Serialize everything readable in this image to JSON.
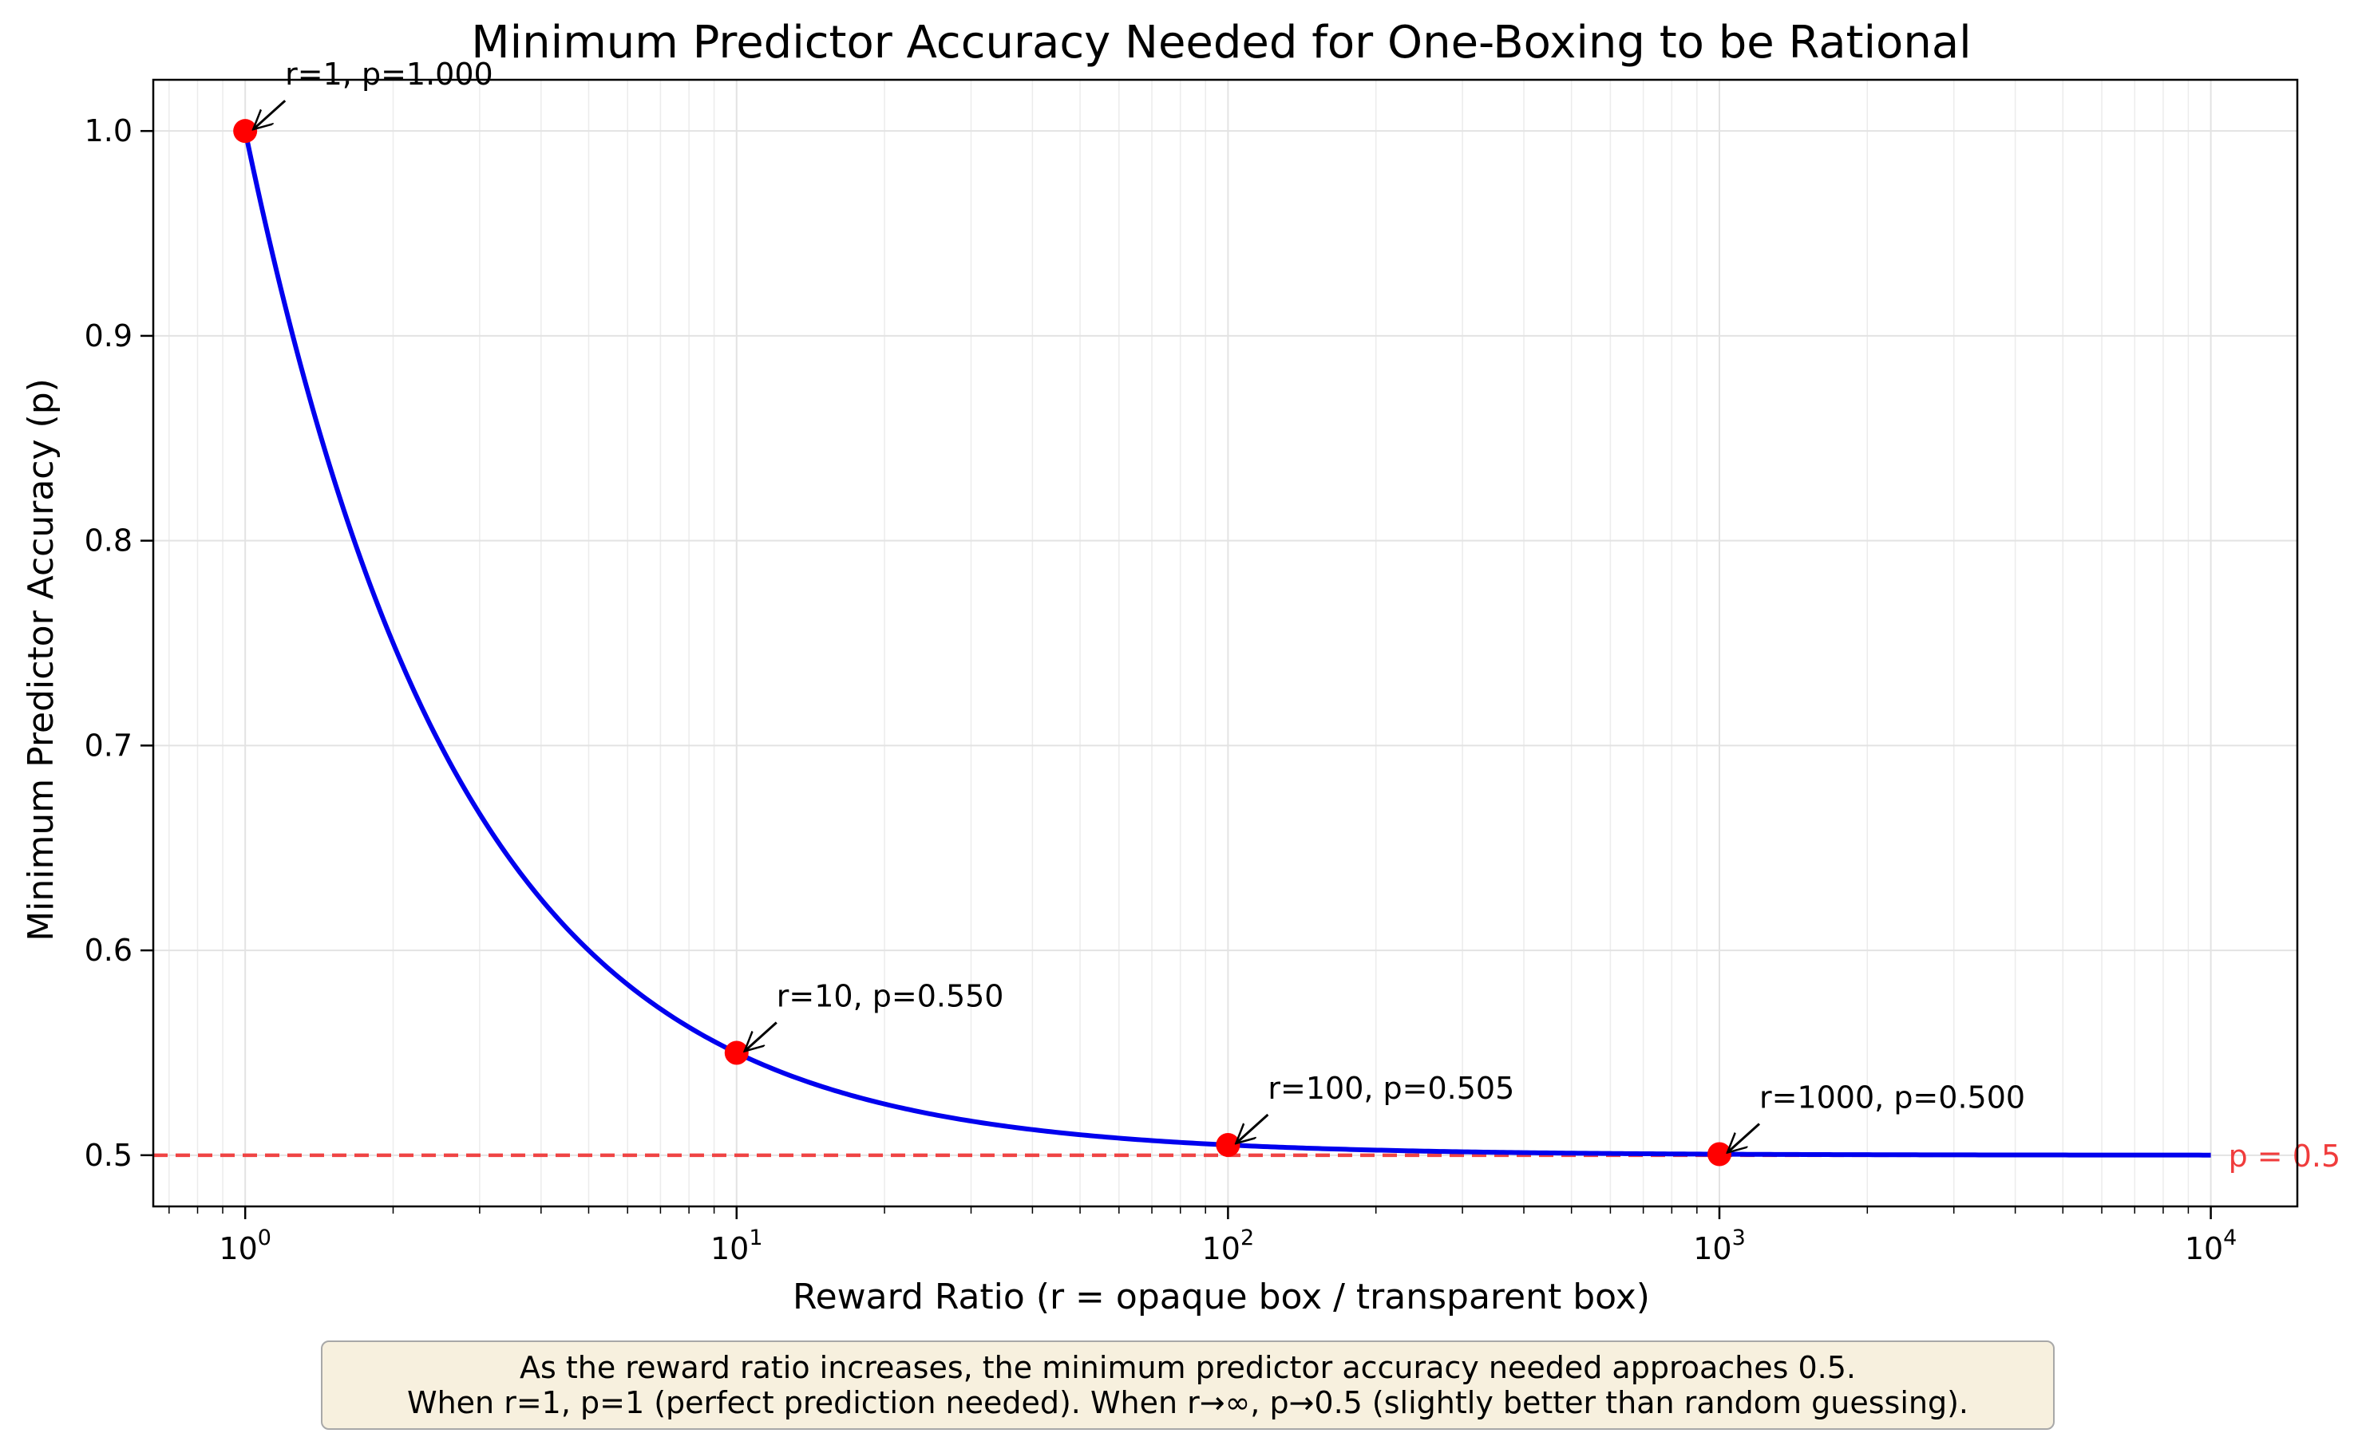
{
  "chart_data": {
    "type": "line",
    "title": "Minimum Predictor Accuracy Needed for One-Boxing to be Rational",
    "xlabel": "Reward Ratio (r = opaque box / transparent box)",
    "ylabel": "Minimum Predictor Accuracy (p)",
    "xscale": "log",
    "xlim": [
      0.65,
      15000
    ],
    "ylim": [
      0.475,
      1.025
    ],
    "grid": true,
    "x_ticks": [
      1,
      10,
      100,
      1000,
      10000
    ],
    "x_tick_labels": [
      {
        "base": "10",
        "exp": "0"
      },
      {
        "base": "10",
        "exp": "1"
      },
      {
        "base": "10",
        "exp": "2"
      },
      {
        "base": "10",
        "exp": "3"
      },
      {
        "base": "10",
        "exp": "4"
      }
    ],
    "y_ticks": [
      0.5,
      0.6,
      0.7,
      0.8,
      0.9,
      1.0
    ],
    "y_tick_labels": [
      "0.5",
      "0.6",
      "0.7",
      "0.8",
      "0.9",
      "1.0"
    ],
    "series": [
      {
        "name": "",
        "color": "#0000ee",
        "style": "solid",
        "x": [
          1,
          1.25,
          1.5,
          2,
          2.5,
          3,
          4,
          5,
          6,
          8,
          10,
          15,
          20,
          30,
          50,
          75,
          100,
          200,
          300,
          500,
          1000,
          2000,
          5000,
          10000
        ],
        "y": [
          1.0,
          0.9,
          0.8333,
          0.75,
          0.7,
          0.6667,
          0.625,
          0.6,
          0.5833,
          0.5625,
          0.55,
          0.5333,
          0.525,
          0.5167,
          0.51,
          0.5067,
          0.505,
          0.5025,
          0.5017,
          0.501,
          0.5005,
          0.5003,
          0.5001,
          0.5001
        ]
      }
    ],
    "reference_line": {
      "y": 0.5,
      "label": "p = 0.5",
      "color": "#f03c3c",
      "style": "dashed"
    },
    "highlight_points": {
      "color": "#ff0000",
      "points": [
        {
          "x": 1,
          "y": 1.0,
          "label": "r=1, p=1.000"
        },
        {
          "x": 10,
          "y": 0.55,
          "label": "r=10, p=0.550"
        },
        {
          "x": 100,
          "y": 0.505,
          "label": "r=100, p=0.505"
        },
        {
          "x": 1000,
          "y": 0.5005,
          "label": "r=1000, p=0.500"
        }
      ]
    }
  },
  "note": {
    "line1": "As the reward ratio increases, the minimum predictor accuracy needed approaches 0.5.",
    "line2": "When r=1, p=1 (perfect prediction needed). When r→∞, p→0.5 (slightly better than random guessing)."
  }
}
